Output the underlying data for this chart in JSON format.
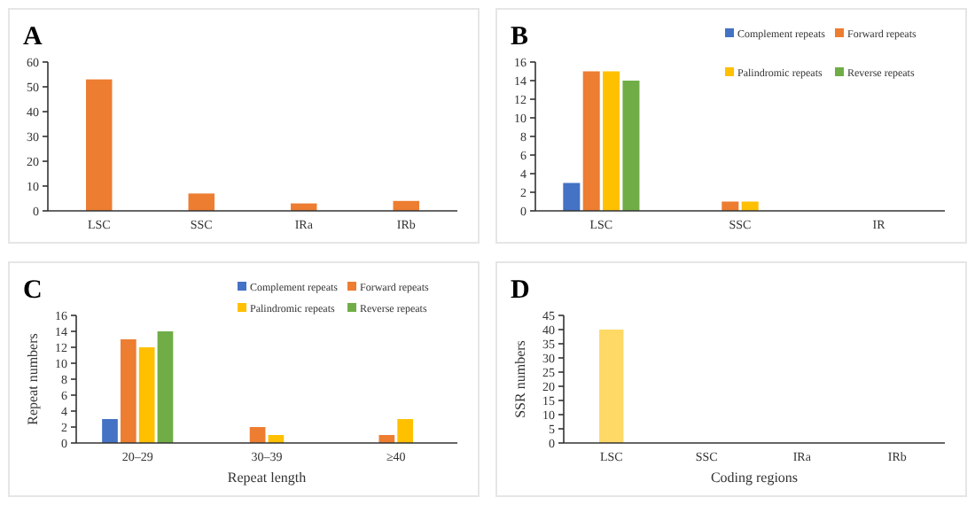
{
  "chart_data": [
    {
      "type": "bar",
      "title": "A",
      "categories": [
        "LSC",
        "SSC",
        "IRa",
        "IRb"
      ],
      "values": [
        53,
        7,
        3,
        4
      ],
      "color": "#ed7d31",
      "ylim": [
        0,
        60
      ],
      "yticks": [
        0,
        10,
        20,
        30,
        40,
        50,
        60
      ],
      "grid": false
    },
    {
      "type": "bar",
      "title": "B",
      "categories": [
        "LSC",
        "SSC",
        "IR"
      ],
      "series": [
        {
          "name": "Complement repeats",
          "color": "#4472c4",
          "values": [
            3,
            0,
            0
          ]
        },
        {
          "name": "Forward repeats",
          "color": "#ed7d31",
          "values": [
            15,
            1,
            0
          ]
        },
        {
          "name": "Palindromic repeats",
          "color": "#ffc000",
          "values": [
            15,
            1,
            0
          ]
        },
        {
          "name": "Reverse repeats",
          "color": "#70ad47",
          "values": [
            14,
            0,
            0
          ]
        }
      ],
      "ylim": [
        0,
        16
      ],
      "yticks": [
        0,
        2,
        4,
        6,
        8,
        10,
        12,
        14,
        16
      ],
      "grid": false,
      "legend": "top right"
    },
    {
      "type": "bar",
      "title": "C",
      "xlabel": "Repeat length",
      "ylabel": "Repeat numbers",
      "categories": [
        "20–29",
        "30–39",
        "≥40"
      ],
      "series": [
        {
          "name": "Complement repeats",
          "color": "#4472c4",
          "values": [
            3,
            0,
            0
          ]
        },
        {
          "name": "Forward repeats",
          "color": "#ed7d31",
          "values": [
            13,
            2,
            1
          ]
        },
        {
          "name": "Palindromic repeats",
          "color": "#ffc000",
          "values": [
            12,
            1,
            3
          ]
        },
        {
          "name": "Reverse repeats",
          "color": "#70ad47",
          "values": [
            14,
            0,
            0
          ]
        }
      ],
      "ylim": [
        0,
        16
      ],
      "yticks": [
        0,
        2,
        4,
        6,
        8,
        10,
        12,
        14,
        16
      ],
      "grid": false,
      "legend": "top right"
    },
    {
      "type": "bar",
      "title": "D",
      "xlabel": "Coding regions",
      "ylabel": "SSR numbers",
      "categories": [
        "LSC",
        "SSC",
        "IRa",
        "IRb"
      ],
      "values": [
        40,
        0,
        0,
        0
      ],
      "color": "#ffd966",
      "ylim": [
        0,
        45
      ],
      "yticks": [
        0,
        5,
        10,
        15,
        20,
        25,
        30,
        35,
        40,
        45
      ],
      "grid": false
    }
  ]
}
